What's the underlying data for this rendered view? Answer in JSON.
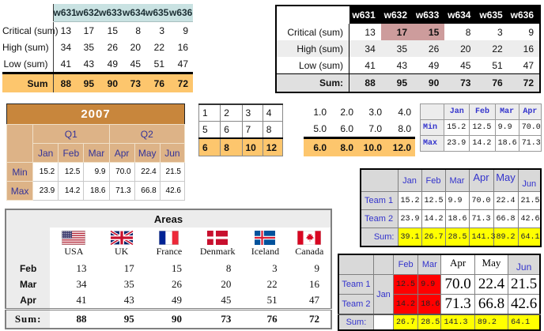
{
  "colors": {
    "cyan_header": "#c9e2e2",
    "orange_sum": "#fdc66d",
    "pink_highlight": "#cd9c9c",
    "tan_header": "#ddb387",
    "title_orange": "#c8863c",
    "gray_header": "#d9d9d9",
    "yellow_sum": "#ffff00",
    "red_highlight": "#ff0000",
    "blue_text": "#3333cc",
    "navy_text": "#333399"
  },
  "week_table_plain": {
    "columns": [
      "w631",
      "w632",
      "w633",
      "w634",
      "w635",
      "w636"
    ],
    "rows": [
      {
        "label": "Critical (sum)",
        "values": [
          "13",
          "17",
          "15",
          "8",
          "3",
          "9"
        ]
      },
      {
        "label": "High (sum)",
        "values": [
          "34",
          "35",
          "26",
          "20",
          "22",
          "16"
        ]
      },
      {
        "label": "Low (sum)",
        "values": [
          "41",
          "43",
          "49",
          "45",
          "51",
          "47"
        ]
      }
    ],
    "sum_row": {
      "label": "Sum",
      "values": [
        "88",
        "95",
        "90",
        "73",
        "76",
        "72"
      ]
    }
  },
  "week_table_dark": {
    "columns": [
      "w631",
      "w632",
      "w633",
      "w634",
      "w635",
      "w636"
    ],
    "rows": [
      {
        "label": "Critical (sum)",
        "values": [
          "13",
          "17",
          "15",
          "8",
          "3",
          "9"
        ]
      },
      {
        "label": "High (sum)",
        "values": [
          "34",
          "35",
          "26",
          "20",
          "22",
          "16"
        ]
      },
      {
        "label": "Low (sum)",
        "values": [
          "41",
          "43",
          "49",
          "45",
          "51",
          "47"
        ]
      }
    ],
    "sum_row": {
      "label": "Sum:",
      "values": [
        "88",
        "95",
        "90",
        "73",
        "76",
        "72"
      ]
    },
    "highlight": {
      "row_index": 0,
      "col_indexes": [
        1,
        2
      ]
    }
  },
  "year_table": {
    "title": "2007",
    "quarters": [
      "Q1",
      "Q2"
    ],
    "months": [
      "Jan",
      "Feb",
      "Mar",
      "Apr",
      "May",
      "Jun"
    ],
    "rows": [
      {
        "label": "Min",
        "values": [
          "15.2",
          "12.5",
          "9.9",
          "70.0",
          "22.4",
          "21.5"
        ]
      },
      {
        "label": "Max",
        "values": [
          "23.9",
          "14.2",
          "18.6",
          "71.3",
          "66.8",
          "42.6"
        ]
      }
    ]
  },
  "grid_table": {
    "rows": [
      [
        "1",
        "2",
        "3",
        "4"
      ],
      [
        "5",
        "6",
        "7",
        "8"
      ]
    ],
    "sum_row": [
      "6",
      "8",
      "10",
      "12"
    ]
  },
  "plain_numbers_table": {
    "rows": [
      [
        "1.0",
        "2.0",
        "3.0",
        "4.0"
      ],
      [
        "5.0",
        "6.0",
        "7.0",
        "8.0"
      ]
    ],
    "sum_row": [
      "6.0",
      "8.0",
      "10.0",
      "12.0"
    ]
  },
  "mono_table": {
    "columns": [
      "Jan",
      "Feb",
      "Mar",
      "Apr"
    ],
    "rows": [
      {
        "label": "Min",
        "values": [
          "15.2",
          "12.5",
          "9.9",
          "70.0"
        ]
      },
      {
        "label": "Max",
        "values": [
          "23.9",
          "14.2",
          "18.6",
          "71.3"
        ]
      }
    ]
  },
  "team_table": {
    "columns": [
      "Jan",
      "Feb",
      "Mar",
      "Apr",
      "May",
      "Jun"
    ],
    "rows": [
      {
        "label": "Team 1",
        "values": [
          "15.2",
          "12.5",
          "9.9",
          "70.0",
          "22.4",
          "21.5"
        ]
      },
      {
        "label": "Team 2",
        "values": [
          "23.9",
          "14.2",
          "18.6",
          "71.3",
          "66.8",
          "42.6"
        ]
      }
    ],
    "sum_row": {
      "label": "Sum:",
      "values": [
        "39.1",
        "26.7",
        "28.5",
        "141.3",
        "89.2",
        "64.1"
      ]
    }
  },
  "areas_table": {
    "title": "Areas",
    "countries": [
      {
        "name": "USA",
        "icon": "flag-usa"
      },
      {
        "name": "UK",
        "icon": "flag-uk"
      },
      {
        "name": "France",
        "icon": "flag-france"
      },
      {
        "name": "Denmark",
        "icon": "flag-denmark"
      },
      {
        "name": "Iceland",
        "icon": "flag-iceland"
      },
      {
        "name": "Canada",
        "icon": "flag-canada"
      }
    ],
    "rows": [
      {
        "label": "Feb",
        "values": [
          "13",
          "17",
          "15",
          "8",
          "3",
          "9"
        ]
      },
      {
        "label": "Mar",
        "values": [
          "34",
          "35",
          "26",
          "20",
          "22",
          "16"
        ]
      },
      {
        "label": "Apr",
        "values": [
          "41",
          "43",
          "49",
          "45",
          "51",
          "47"
        ]
      }
    ],
    "sum_row": {
      "label": "Sum:",
      "values": [
        "88",
        "95",
        "90",
        "73",
        "76",
        "72"
      ]
    }
  },
  "merged_table": {
    "merged_month": "Jan",
    "columns": [
      "Feb",
      "Mar",
      "Apr",
      "May",
      "Jun"
    ],
    "rows": [
      {
        "label": "Team 1",
        "red_values": [
          "12.5",
          "9.9"
        ],
        "big_values": [
          "70.0",
          "22.4",
          "21.5"
        ]
      },
      {
        "label": "Team 2",
        "red_values": [
          "14.2",
          "18.6"
        ],
        "big_values": [
          "71.3",
          "66.8",
          "42.6"
        ]
      }
    ],
    "sum_row": {
      "label": "Sum:",
      "values": [
        "26.7",
        "28.5",
        "141.3",
        "89.2",
        "64.1"
      ]
    }
  }
}
